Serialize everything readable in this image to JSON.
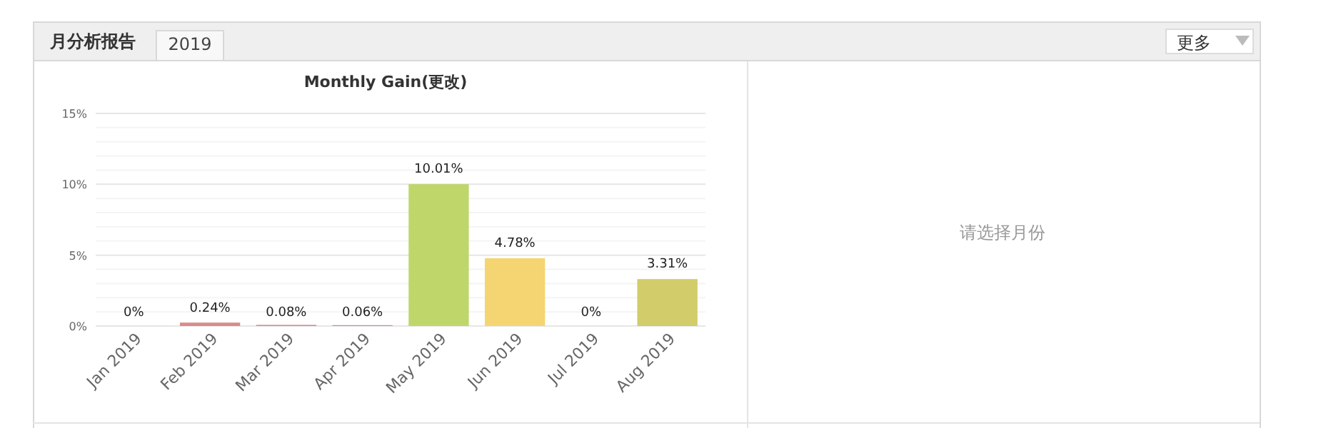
{
  "chart_data": {
    "type": "bar",
    "title": "Monthly Gain(更改)",
    "categories": [
      "Jan 2019",
      "Feb 2019",
      "Mar 2019",
      "Apr 2019",
      "May 2019",
      "Jun 2019",
      "Jul 2019",
      "Aug 2019"
    ],
    "values": [
      0,
      0.24,
      0.08,
      0.06,
      10.01,
      4.78,
      0,
      3.31
    ],
    "colors": [
      "#d98b8b",
      "#d98b8b",
      "#d98b8b",
      "#d98b8b",
      "#bfd66b",
      "#f5d572",
      "#d98b8b",
      "#d2cc6a"
    ],
    "value_labels": [
      "0%",
      "0.24%",
      "0.08%",
      "0.06%",
      "10.01%",
      "4.78%",
      "0%",
      "3.31%"
    ],
    "ylim": [
      0,
      15
    ],
    "yticks": [
      {
        "value": 0,
        "label": "0%"
      },
      {
        "value": 5,
        "label": "5%"
      },
      {
        "value": 10,
        "label": "10%"
      },
      {
        "value": 15,
        "label": "15%"
      }
    ],
    "grid": "y",
    "annotations": [
      "月分析报告",
      "2019",
      "更多",
      "请选择月份"
    ]
  }
}
